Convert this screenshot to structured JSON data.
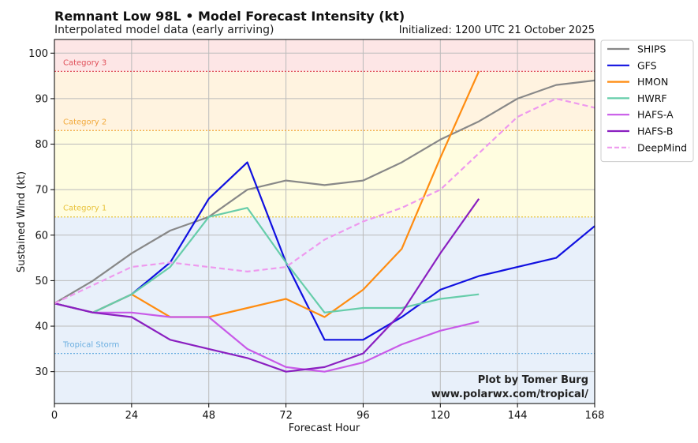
{
  "header": {
    "title": "Remnant Low 98L • Model Forecast Intensity (kt)",
    "subtitle": "Interpolated model data (early arriving)",
    "initialized": "Initialized: 1200 UTC 21 October 2025"
  },
  "credit": {
    "line1": "Plot by Tomer Burg",
    "line2": "www.polarwx.com/tropical/"
  },
  "chart_data": {
    "type": "line",
    "xlabel": "Forecast Hour",
    "ylabel": "Sustained Wind (kt)",
    "xlim": [
      0,
      168
    ],
    "ylim": [
      23,
      103
    ],
    "xticks": [
      0,
      24,
      48,
      72,
      96,
      120,
      144,
      168
    ],
    "yticks": [
      30,
      40,
      50,
      60,
      70,
      80,
      90,
      100
    ],
    "grid": true,
    "legend_position": "outside-right-top",
    "categories_bands": [
      {
        "label": "Tropical Storm",
        "threshold": 34,
        "color": "#6aaee0",
        "band_color": "#e8f0fa",
        "band_from": 23,
        "band_to": 64
      },
      {
        "label": "Category 1",
        "threshold": 64,
        "color": "#e8c23a",
        "band_color": "#fffde0",
        "band_from": 64,
        "band_to": 83
      },
      {
        "label": "Category 2",
        "threshold": 83,
        "color": "#f2a93b",
        "band_color": "#fff3e0",
        "band_from": 83,
        "band_to": 96
      },
      {
        "label": "Category 3",
        "threshold": 96,
        "color": "#e0505a",
        "band_color": "#fde6e6",
        "band_from": 96,
        "band_to": 103
      }
    ],
    "series": [
      {
        "name": "SHIPS",
        "color": "#888888",
        "dashed": false,
        "x": [
          0,
          12,
          24,
          36,
          48,
          60,
          72,
          84,
          96,
          108,
          120,
          132,
          144,
          156,
          168
        ],
        "values": [
          45,
          50,
          56,
          61,
          64,
          70,
          72,
          71,
          72,
          76,
          81,
          85,
          90,
          93,
          94
        ]
      },
      {
        "name": "GFS",
        "color": "#1010e0",
        "dashed": false,
        "x": [
          0,
          12,
          24,
          36,
          48,
          60,
          72,
          84,
          96,
          108,
          120,
          132,
          144,
          156,
          168
        ],
        "values": [
          45,
          43,
          47,
          54,
          68,
          76,
          54,
          37,
          37,
          42,
          48,
          51,
          53,
          55,
          62
        ]
      },
      {
        "name": "HMON",
        "color": "#ff8c10",
        "dashed": false,
        "x": [
          0,
          12,
          24,
          36,
          48,
          60,
          72,
          84,
          96,
          108,
          120,
          132
        ],
        "values": [
          45,
          43,
          47,
          42,
          42,
          44,
          46,
          42,
          48,
          57,
          77,
          96
        ]
      },
      {
        "name": "HWRF",
        "color": "#66cdaa",
        "dashed": false,
        "x": [
          0,
          12,
          24,
          36,
          48,
          60,
          72,
          84,
          96,
          108,
          120,
          132
        ],
        "values": [
          45,
          43,
          47,
          53,
          64,
          66,
          54,
          43,
          44,
          44,
          46,
          47
        ]
      },
      {
        "name": "HAFS-A",
        "color": "#c85ae8",
        "dashed": false,
        "x": [
          0,
          12,
          24,
          36,
          48,
          60,
          72,
          84,
          96,
          108,
          120,
          132
        ],
        "values": [
          45,
          43,
          43,
          42,
          42,
          35,
          31,
          30,
          32,
          36,
          39,
          41
        ]
      },
      {
        "name": "HAFS-B",
        "color": "#8a1fc0",
        "dashed": false,
        "x": [
          0,
          12,
          24,
          36,
          48,
          60,
          72,
          84,
          96,
          108,
          120,
          132
        ],
        "values": [
          45,
          43,
          42,
          37,
          35,
          33,
          30,
          31,
          34,
          43,
          56,
          68
        ]
      },
      {
        "name": "DeepMind",
        "color": "#ee99ee",
        "dashed": true,
        "x": [
          0,
          12,
          24,
          36,
          48,
          60,
          72,
          84,
          96,
          108,
          120,
          132,
          144,
          156,
          168
        ],
        "values": [
          45,
          49,
          53,
          54,
          53,
          52,
          53,
          59,
          63,
          66,
          70,
          78,
          86,
          90,
          88
        ]
      }
    ]
  }
}
